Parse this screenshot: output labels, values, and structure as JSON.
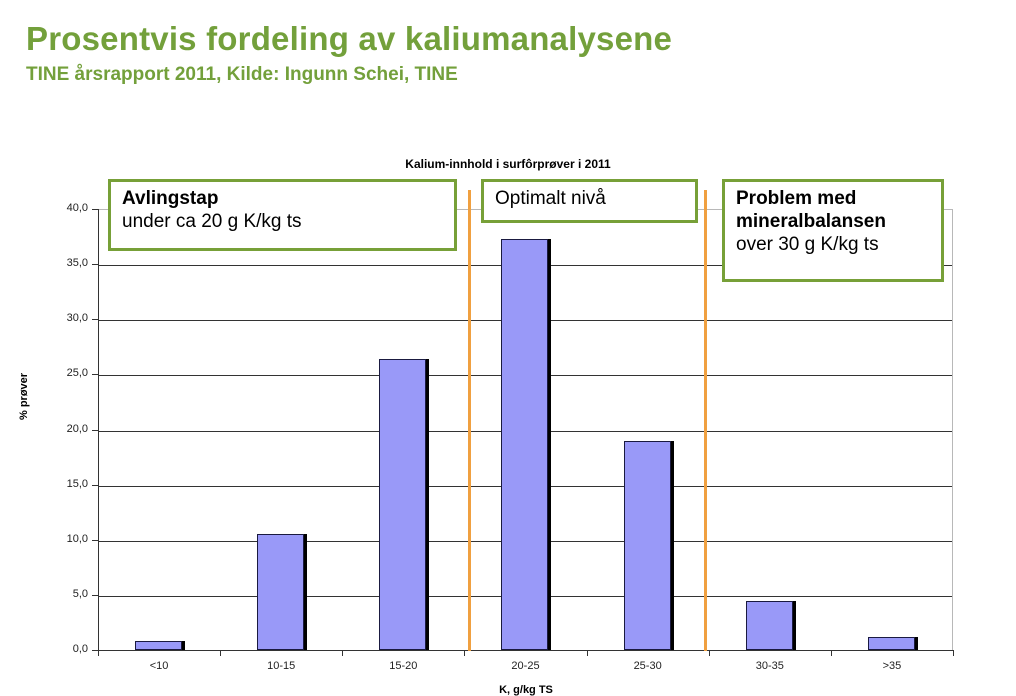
{
  "header": {
    "title": "Prosentvis fordeling av kaliumanalysene",
    "subtitle": "TINE årsrapport 2011, Kilde: Ingunn Schei, TINE"
  },
  "annotations": {
    "left": {
      "bold": "Avlingstap",
      "text": "under ca 20 g K/kg ts"
    },
    "middle": {
      "text": "Optimalt nivå"
    },
    "right": {
      "bold1": "Problem med",
      "bold2": "mineralbalansen",
      "text": "over 30 g K/kg ts"
    }
  },
  "colors": {
    "title_green": "#73a03b",
    "bar_fill": "#9999f8",
    "threshold_orange": "#f0a040",
    "annotation_border": "#77a038"
  },
  "chart_data": {
    "type": "bar",
    "title": "Kalium-innhold i surfôrprøver i 2011",
    "xlabel": "K, g/kg TS",
    "ylabel": "% prøver",
    "categories": [
      "<10",
      "10-15",
      "15-20",
      "20-25",
      "25-30",
      "30-35",
      ">35"
    ],
    "values": [
      0.8,
      10.5,
      26.4,
      37.3,
      19.0,
      4.4,
      1.2
    ],
    "ylim": [
      0,
      40
    ],
    "yticks": [
      "0,0",
      "5,0",
      "10,0",
      "15,0",
      "20,0",
      "25,0",
      "30,0",
      "35,0",
      "40,0"
    ],
    "grid": true,
    "legend": "none",
    "threshold_lines": [
      20,
      30
    ]
  }
}
